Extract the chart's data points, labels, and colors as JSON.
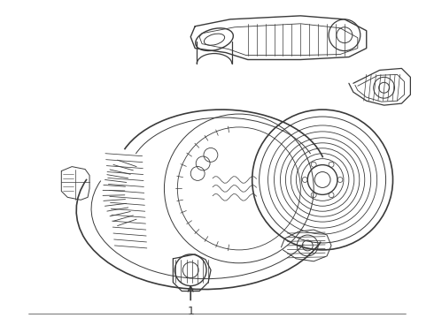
{
  "bg_color": "#ffffff",
  "line_color": "#3a3a3a",
  "lw": 0.7,
  "label": "1",
  "fig_w": 4.9,
  "fig_h": 3.6,
  "dpi": 100
}
